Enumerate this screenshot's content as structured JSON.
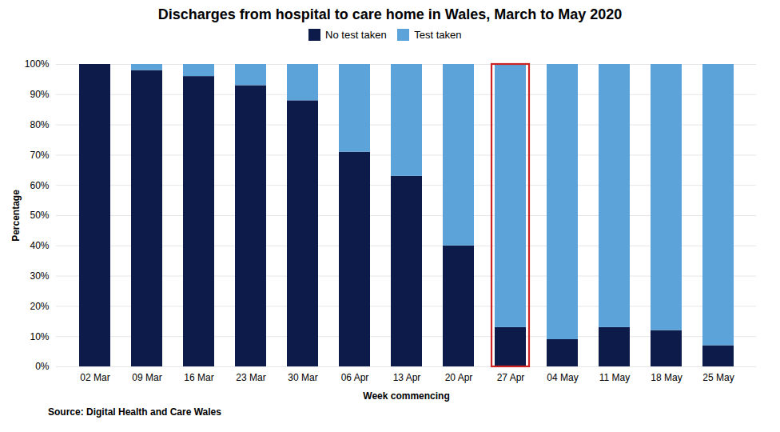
{
  "chart_data": {
    "type": "bar",
    "title": "Discharges from hospital to care home in Wales, March to May 2020",
    "xlabel": "Week commencing",
    "ylabel": "Percentage",
    "source": "Source: Digital Health and Care Wales",
    "categories": [
      "02 Mar",
      "09 Mar",
      "16 Mar",
      "23 Mar",
      "30 Mar",
      "06 Apr",
      "13 Apr",
      "20 Apr",
      "27 Apr",
      "04 May",
      "11 May",
      "18 May",
      "25 May"
    ],
    "series": [
      {
        "name": "No test taken",
        "color": "#0d1b4b",
        "values": [
          100,
          98,
          96,
          93,
          88,
          71,
          63,
          40,
          13,
          9,
          13,
          12,
          7
        ]
      },
      {
        "name": "Test taken",
        "color": "#5ba3d9",
        "values": [
          0,
          2,
          4,
          7,
          12,
          29,
          37,
          60,
          87,
          91,
          87,
          88,
          93
        ]
      }
    ],
    "stacked": true,
    "ylim": [
      0,
      100
    ],
    "yticks": [
      {
        "value": 0,
        "label": "0%"
      },
      {
        "value": 10,
        "label": "10%"
      },
      {
        "value": 20,
        "label": "20%"
      },
      {
        "value": 30,
        "label": "30%"
      },
      {
        "value": 40,
        "label": "40%"
      },
      {
        "value": 50,
        "label": "50%"
      },
      {
        "value": 60,
        "label": "60%"
      },
      {
        "value": 70,
        "label": "70%"
      },
      {
        "value": 80,
        "label": "80%"
      },
      {
        "value": 90,
        "label": "90%"
      },
      {
        "value": 100,
        "label": "100%"
      }
    ],
    "grid": true,
    "legend": "top",
    "highlight": {
      "category": "27 Apr",
      "color": "#cc2222"
    }
  }
}
